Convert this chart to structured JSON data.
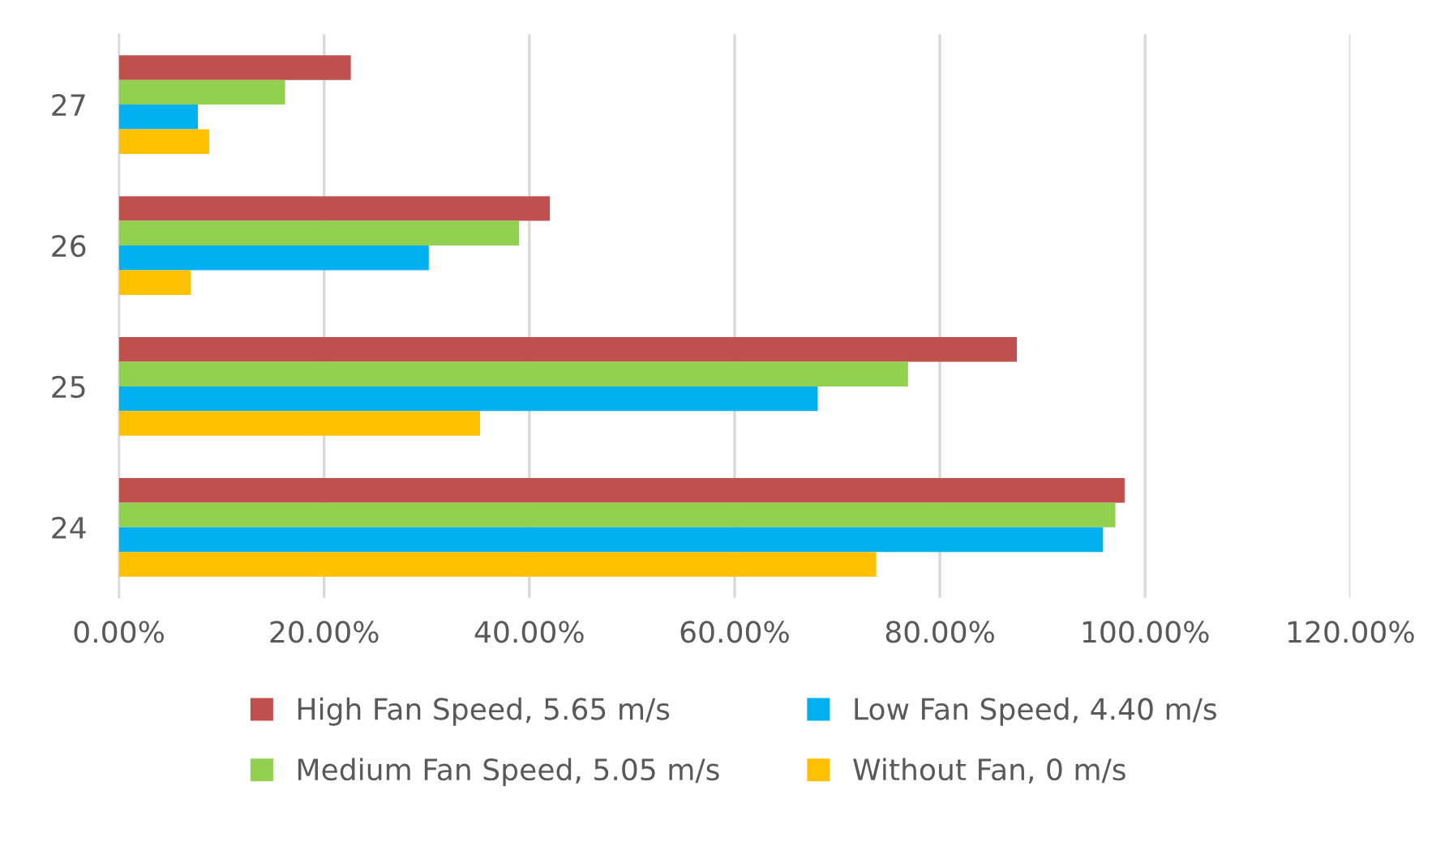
{
  "chart_data": {
    "type": "bar",
    "orientation": "horizontal",
    "categories": [
      "27",
      "26",
      "25",
      "24"
    ],
    "series": [
      {
        "name": "High Fan Speed, 5.65 m/s",
        "color": "#c0504d",
        "values": [
          22.6,
          42.0,
          87.5,
          98.0
        ]
      },
      {
        "name": "Medium Fan Speed, 5.05 m/s",
        "color": "#92d050",
        "values": [
          16.2,
          39.0,
          76.9,
          97.1
        ]
      },
      {
        "name": "Low Fan Speed, 4.40 m/s",
        "color": "#00b0f0",
        "values": [
          7.7,
          30.2,
          68.1,
          95.9
        ]
      },
      {
        "name": "Without Fan, 0 m/s",
        "color": "#ffc000",
        "values": [
          8.8,
          7.0,
          35.2,
          73.8
        ]
      }
    ],
    "xlim": [
      0,
      120
    ],
    "xticks": [
      {
        "value": 0,
        "label": "0.00%"
      },
      {
        "value": 20,
        "label": "20.00%"
      },
      {
        "value": 40,
        "label": "40.00%"
      },
      {
        "value": 60,
        "label": "60.00%"
      },
      {
        "value": 80,
        "label": "80.00%"
      },
      {
        "value": 100,
        "label": "100.00%"
      },
      {
        "value": 120,
        "label": "120.00%"
      }
    ],
    "grid": "x",
    "legend": "bottom"
  }
}
